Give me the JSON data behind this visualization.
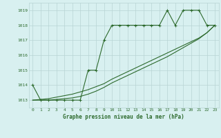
{
  "series1_x": [
    0,
    1,
    2,
    3,
    4,
    5,
    6,
    7,
    8,
    9,
    10,
    11,
    12,
    13,
    14,
    15,
    16,
    17,
    18,
    19,
    20,
    21,
    22,
    23
  ],
  "series1_y": [
    1014,
    1013,
    1013,
    1013,
    1013,
    1013,
    1013,
    1015,
    1015,
    1017,
    1018,
    1018,
    1018,
    1018,
    1018,
    1018,
    1018,
    1019,
    1018,
    1019,
    1019,
    1019,
    1018,
    1018
  ],
  "series2_x": [
    0,
    1,
    2,
    3,
    4,
    5,
    6,
    7,
    8,
    9,
    10,
    11,
    12,
    13,
    14,
    15,
    16,
    17,
    18,
    19,
    20,
    21,
    22,
    23
  ],
  "series2_y": [
    1013.0,
    1013.05,
    1013.1,
    1013.2,
    1013.3,
    1013.4,
    1013.55,
    1013.7,
    1013.9,
    1014.1,
    1014.4,
    1014.65,
    1014.9,
    1015.15,
    1015.4,
    1015.65,
    1015.9,
    1016.15,
    1016.4,
    1016.65,
    1016.9,
    1017.15,
    1017.5,
    1018.0
  ],
  "series3_x": [
    0,
    1,
    2,
    3,
    4,
    5,
    6,
    7,
    8,
    9,
    10,
    11,
    12,
    13,
    14,
    15,
    16,
    17,
    18,
    19,
    20,
    21,
    22,
    23
  ],
  "series3_y": [
    1013.0,
    1013.0,
    1013.0,
    1013.05,
    1013.1,
    1013.15,
    1013.25,
    1013.4,
    1013.6,
    1013.85,
    1014.15,
    1014.4,
    1014.65,
    1014.9,
    1015.15,
    1015.4,
    1015.65,
    1015.9,
    1016.2,
    1016.5,
    1016.8,
    1017.1,
    1017.5,
    1018.0
  ],
  "line_color": "#2d6a2d",
  "bg_color": "#d8f0f0",
  "grid_color": "#b8d4d4",
  "xlabel": "Graphe pression niveau de la mer (hPa)",
  "ylim_min": 1012.5,
  "ylim_max": 1019.5,
  "xlim_min": -0.5,
  "xlim_max": 23.5,
  "yticks": [
    1013,
    1014,
    1015,
    1016,
    1017,
    1018,
    1019
  ],
  "xticks": [
    0,
    1,
    2,
    3,
    4,
    5,
    6,
    7,
    8,
    9,
    10,
    11,
    12,
    13,
    14,
    15,
    16,
    17,
    18,
    19,
    20,
    21,
    22,
    23
  ]
}
